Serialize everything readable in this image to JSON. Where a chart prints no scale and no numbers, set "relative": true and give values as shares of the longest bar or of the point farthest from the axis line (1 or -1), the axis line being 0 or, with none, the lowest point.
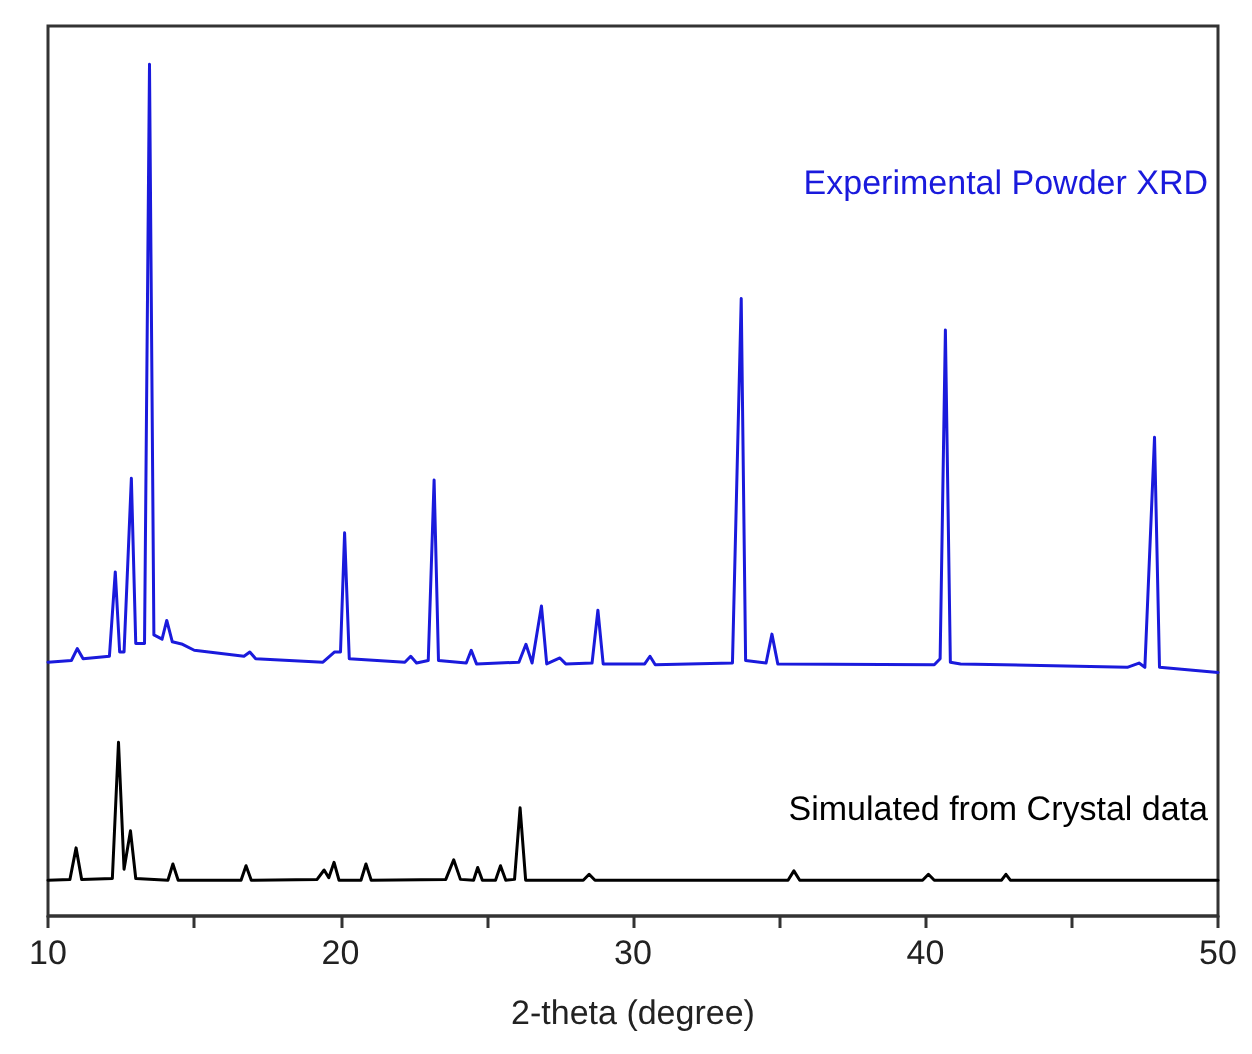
{
  "chart_data": {
    "type": "line",
    "xlabel": "2-theta (degree)",
    "xlim": [
      10,
      50
    ],
    "xticks": [
      10,
      20,
      30,
      40,
      50
    ],
    "relative": true,
    "marker": "none",
    "line_style": "solid",
    "series": [
      {
        "name": "Experimental Powder XRD",
        "color": "#1a1adc",
        "x": [
          10,
          10.8,
          11.0,
          11.2,
          12.1,
          12.3,
          12.45,
          12.6,
          12.85,
          13.0,
          13.3,
          13.47,
          13.62,
          13.9,
          14.06,
          14.25,
          14.6,
          15.0,
          16.7,
          16.9,
          17.1,
          19.4,
          19.8,
          20.0,
          20.14,
          20.3,
          22.2,
          22.4,
          22.6,
          23.0,
          23.2,
          23.35,
          24.3,
          24.47,
          24.65,
          26.1,
          26.34,
          26.55,
          26.87,
          27.05,
          27.5,
          27.7,
          28.6,
          28.8,
          28.98,
          30.4,
          30.58,
          30.76,
          33.4,
          33.7,
          33.85,
          34.55,
          34.75,
          34.95,
          40.3,
          40.5,
          40.68,
          40.85,
          41.2,
          46.9,
          47.3,
          47.5,
          47.83,
          48.0,
          50
        ],
        "values": [
          0.298,
          0.3,
          0.314,
          0.302,
          0.305,
          0.404,
          0.31,
          0.31,
          0.514,
          0.32,
          0.32,
          1.0,
          0.33,
          0.325,
          0.347,
          0.322,
          0.319,
          0.312,
          0.305,
          0.31,
          0.302,
          0.298,
          0.31,
          0.31,
          0.45,
          0.302,
          0.298,
          0.305,
          0.297,
          0.3,
          0.512,
          0.3,
          0.297,
          0.312,
          0.296,
          0.298,
          0.319,
          0.297,
          0.364,
          0.296,
          0.303,
          0.296,
          0.297,
          0.359,
          0.296,
          0.296,
          0.305,
          0.295,
          0.297,
          0.725,
          0.3,
          0.297,
          0.331,
          0.296,
          0.295,
          0.302,
          0.688,
          0.298,
          0.296,
          0.292,
          0.297,
          0.292,
          0.562,
          0.292,
          0.286
        ]
      },
      {
        "name": "Simulated from Crystal data",
        "color": "#000000",
        "x": [
          10,
          10.75,
          10.96,
          11.15,
          12.2,
          12.41,
          12.6,
          12.82,
          13.0,
          14.1,
          14.27,
          14.45,
          16.6,
          16.77,
          16.95,
          19.2,
          19.44,
          19.6,
          19.78,
          19.95,
          20.7,
          20.87,
          21.05,
          23.6,
          23.87,
          24.1,
          24.55,
          24.69,
          24.85,
          25.3,
          25.47,
          25.65,
          25.95,
          26.14,
          26.33,
          28.3,
          28.5,
          28.7,
          35.3,
          35.5,
          35.7,
          39.9,
          40.1,
          40.3,
          42.6,
          42.75,
          42.9,
          50
        ],
        "values": [
          0.042,
          0.043,
          0.08,
          0.043,
          0.044,
          0.204,
          0.055,
          0.1,
          0.044,
          0.042,
          0.061,
          0.042,
          0.042,
          0.059,
          0.042,
          0.043,
          0.054,
          0.045,
          0.063,
          0.042,
          0.042,
          0.061,
          0.042,
          0.043,
          0.066,
          0.043,
          0.042,
          0.057,
          0.042,
          0.042,
          0.059,
          0.042,
          0.043,
          0.127,
          0.042,
          0.042,
          0.049,
          0.042,
          0.042,
          0.053,
          0.042,
          0.042,
          0.049,
          0.042,
          0.042,
          0.049,
          0.042,
          0.042
        ]
      }
    ]
  }
}
